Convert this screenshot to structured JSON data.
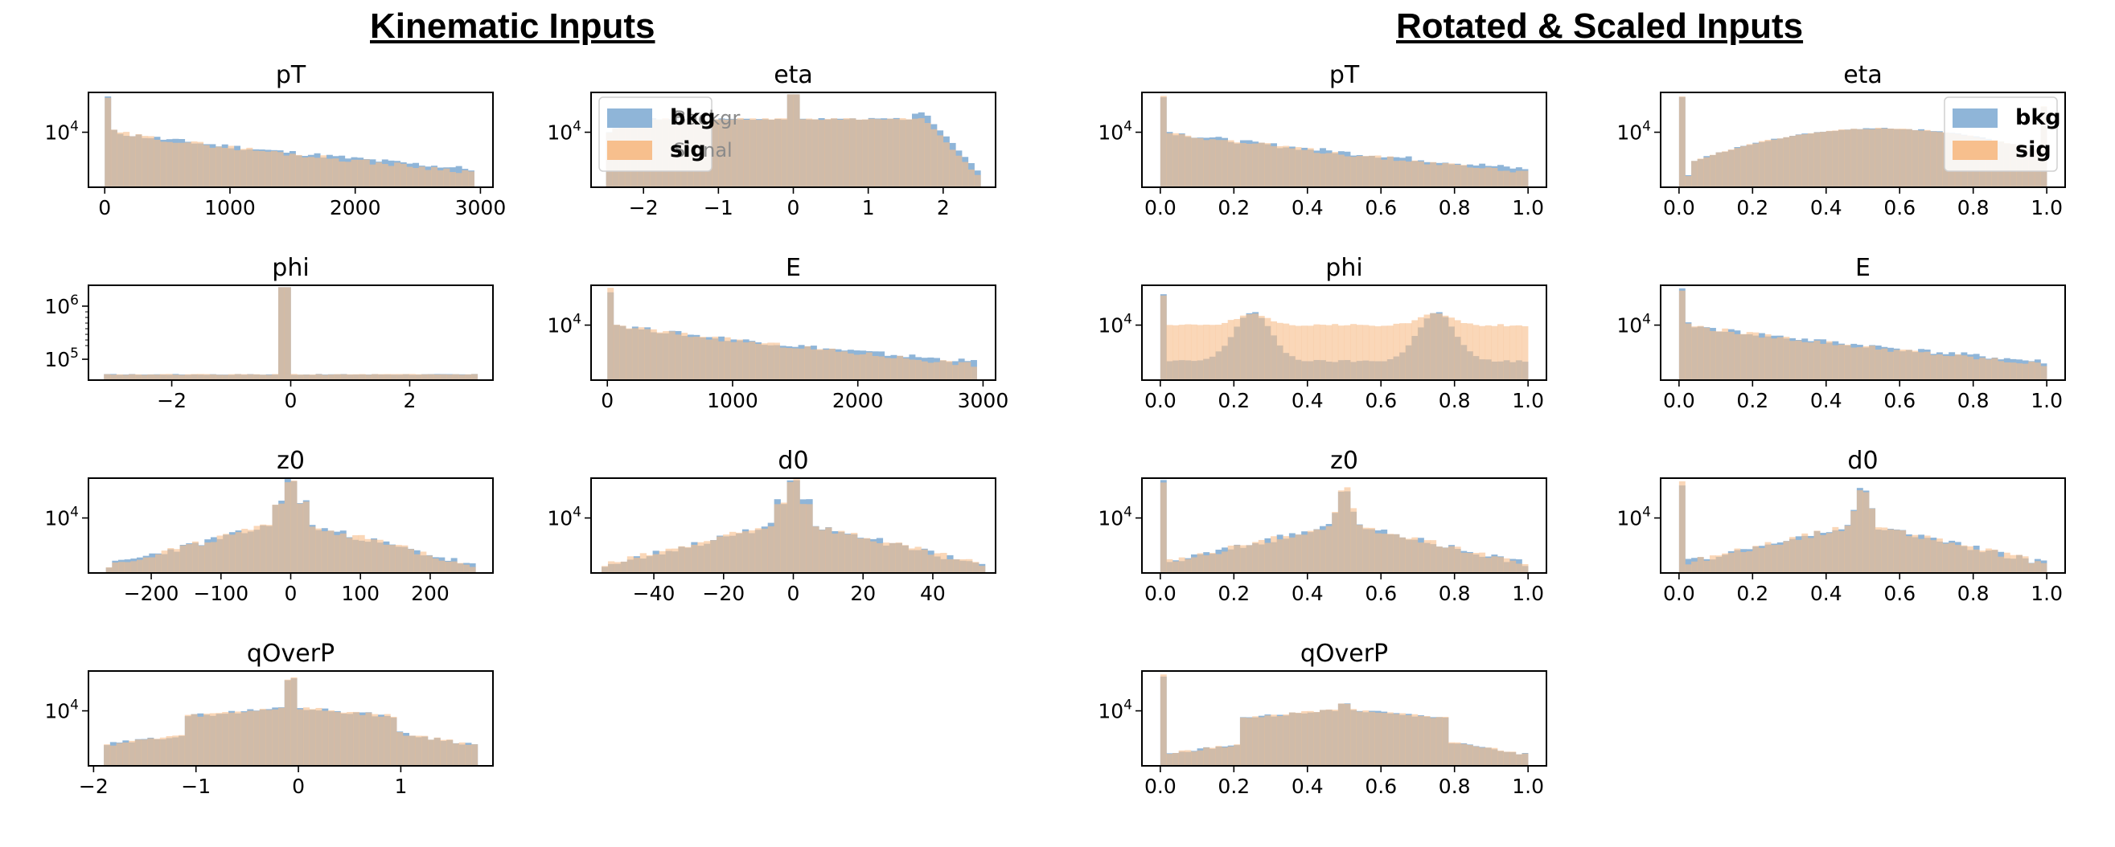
{
  "section_titles": {
    "left": "Kinematic Inputs",
    "right": "Rotated & Scaled Inputs"
  },
  "colors": {
    "bkg": "#8fb5d8",
    "sig": "#f7bf8d",
    "overlap": "#bb9675"
  },
  "legend": {
    "bkg": "bkg",
    "sig": "sig",
    "underlying_left": [
      "Backgr",
      "Signal"
    ]
  },
  "chart_data": [
    {
      "type": "histogram",
      "title": "pT",
      "group": "kinematic",
      "xlim": [
        -130,
        3100
      ],
      "yscale": "log",
      "yticks": [
        {
          "v": 10000,
          "label": "10^4"
        }
      ],
      "xticks": [
        0,
        1000,
        2000,
        3000
      ],
      "xticklabels": [
        "0",
        "1000",
        "2000",
        "3000"
      ],
      "shape": "decay",
      "params": {
        "start": 0,
        "end": 2950,
        "peakAt": 0
      },
      "legend": false
    },
    {
      "type": "histogram",
      "title": "eta",
      "group": "kinematic",
      "xlim": [
        -2.7,
        2.7
      ],
      "yscale": "log",
      "yticks": [
        {
          "v": 10000,
          "label": "10^4"
        }
      ],
      "xticks": [
        -2,
        -1,
        0,
        1,
        2
      ],
      "xticklabels": [
        "−2",
        "−1",
        "0",
        "1",
        "2"
      ],
      "shape": "plateau_spike",
      "params": {
        "start": -2.5,
        "end": 2.5,
        "spikeAt": 0
      },
      "legend": true,
      "legend_position": "top-left"
    },
    {
      "type": "histogram",
      "title": "phi",
      "group": "kinematic",
      "xlim": [
        -3.4,
        3.4
      ],
      "yscale": "log",
      "yticks": [
        {
          "v": 100000,
          "label": "10^5"
        },
        {
          "v": 1000000,
          "label": "10^6"
        }
      ],
      "xticks": [
        -2,
        0,
        2
      ],
      "xticklabels": [
        "−2",
        "0",
        "2"
      ],
      "shape": "flat_spike",
      "params": {
        "start": -3.14,
        "end": 3.14,
        "spikeAt": -0.1
      },
      "legend": false
    },
    {
      "type": "histogram",
      "title": "E",
      "group": "kinematic",
      "xlim": [
        -130,
        3100
      ],
      "yscale": "log",
      "yticks": [
        {
          "v": 10000,
          "label": "10^4"
        }
      ],
      "xticks": [
        0,
        1000,
        2000,
        3000
      ],
      "xticklabels": [
        "0",
        "1000",
        "2000",
        "3000"
      ],
      "shape": "decay",
      "params": {
        "start": 0,
        "end": 2950,
        "peakAt": 0
      },
      "legend": false
    },
    {
      "type": "histogram",
      "title": "z0",
      "group": "kinematic",
      "xlim": [
        -290,
        290
      ],
      "yscale": "log",
      "yticks": [
        {
          "v": 10000,
          "label": "10^4"
        }
      ],
      "xticks": [
        -200,
        -100,
        0,
        100,
        200
      ],
      "xticklabels": [
        "−200",
        "−100",
        "0",
        "100",
        "200"
      ],
      "shape": "peak",
      "params": {
        "start": -265,
        "end": 265,
        "peakAt": 0
      },
      "legend": false
    },
    {
      "type": "histogram",
      "title": "d0",
      "group": "kinematic",
      "xlim": [
        -58,
        58
      ],
      "yscale": "log",
      "yticks": [
        {
          "v": 10000,
          "label": "10^4"
        }
      ],
      "xticks": [
        -40,
        -20,
        0,
        20,
        40
      ],
      "xticklabels": [
        "−40",
        "−20",
        "0",
        "20",
        "40"
      ],
      "shape": "peak",
      "params": {
        "start": -55,
        "end": 55,
        "peakAt": 0
      },
      "legend": false
    },
    {
      "type": "histogram",
      "title": "qOverP",
      "group": "kinematic",
      "xlim": [
        -2.05,
        1.9
      ],
      "yscale": "log",
      "yticks": [
        {
          "v": 10000,
          "label": "10^4"
        }
      ],
      "xticks": [
        -2,
        -1,
        0,
        1
      ],
      "xticklabels": [
        "−2",
        "−1",
        "0",
        "1"
      ],
      "shape": "plateau_tails",
      "params": {
        "start": -1.9,
        "end": 1.75,
        "peakAt": 0
      },
      "legend": false
    },
    {
      "type": "histogram",
      "title": "pT",
      "group": "scaled",
      "xlim": [
        -0.05,
        1.05
      ],
      "yscale": "log",
      "yticks": [
        {
          "v": 10000,
          "label": "10^4"
        }
      ],
      "xticks": [
        0.0,
        0.2,
        0.4,
        0.6,
        0.8,
        1.0
      ],
      "xticklabels": [
        "0.0",
        "0.2",
        "0.4",
        "0.6",
        "0.8",
        "1.0"
      ],
      "shape": "decay",
      "params": {
        "start": 0,
        "end": 1,
        "peakAt": 0
      },
      "legend": false
    },
    {
      "type": "histogram",
      "title": "eta",
      "group": "scaled",
      "xlim": [
        -0.05,
        1.05
      ],
      "yscale": "log",
      "yticks": [
        {
          "v": 10000,
          "label": "10^4"
        }
      ],
      "xticks": [
        0.0,
        0.2,
        0.4,
        0.6,
        0.8,
        1.0
      ],
      "xticklabels": [
        "0.0",
        "0.2",
        "0.4",
        "0.6",
        "0.8",
        "1.0"
      ],
      "shape": "arch_spike0",
      "params": {
        "start": 0,
        "end": 1,
        "peakAt": 0
      },
      "legend": true,
      "legend_position": "top-right"
    },
    {
      "type": "histogram",
      "title": "phi",
      "group": "scaled",
      "xlim": [
        -0.05,
        1.05
      ],
      "yscale": "log",
      "yticks": [
        {
          "v": 10000,
          "label": "10^4"
        }
      ],
      "xticks": [
        0.0,
        0.2,
        0.4,
        0.6,
        0.8,
        1.0
      ],
      "xticklabels": [
        "0.0",
        "0.2",
        "0.4",
        "0.6",
        "0.8",
        "1.0"
      ],
      "shape": "double_hump",
      "params": {
        "start": 0,
        "end": 1,
        "peakAt": 0
      },
      "legend": false
    },
    {
      "type": "histogram",
      "title": "E",
      "group": "scaled",
      "xlim": [
        -0.05,
        1.05
      ],
      "yscale": "log",
      "yticks": [
        {
          "v": 10000,
          "label": "10^4"
        }
      ],
      "xticks": [
        0.0,
        0.2,
        0.4,
        0.6,
        0.8,
        1.0
      ],
      "xticklabels": [
        "0.0",
        "0.2",
        "0.4",
        "0.6",
        "0.8",
        "1.0"
      ],
      "shape": "decay",
      "params": {
        "start": 0,
        "end": 1,
        "peakAt": 0
      },
      "legend": false
    },
    {
      "type": "histogram",
      "title": "z0",
      "group": "scaled",
      "xlim": [
        -0.05,
        1.05
      ],
      "yscale": "log",
      "yticks": [
        {
          "v": 10000,
          "label": "10^4"
        }
      ],
      "xticks": [
        0.0,
        0.2,
        0.4,
        0.6,
        0.8,
        1.0
      ],
      "xticklabels": [
        "0.0",
        "0.2",
        "0.4",
        "0.6",
        "0.8",
        "1.0"
      ],
      "shape": "peak_spike0",
      "params": {
        "start": 0,
        "end": 1,
        "peakAt": 0.5
      },
      "legend": false
    },
    {
      "type": "histogram",
      "title": "d0",
      "group": "scaled",
      "xlim": [
        -0.05,
        1.05
      ],
      "yscale": "log",
      "yticks": [
        {
          "v": 10000,
          "label": "10^4"
        }
      ],
      "xticks": [
        0.0,
        0.2,
        0.4,
        0.6,
        0.8,
        1.0
      ],
      "xticklabels": [
        "0.0",
        "0.2",
        "0.4",
        "0.6",
        "0.8",
        "1.0"
      ],
      "shape": "peak_spike0",
      "params": {
        "start": 0,
        "end": 1,
        "peakAt": 0.5
      },
      "legend": false
    },
    {
      "type": "histogram",
      "title": "qOverP",
      "group": "scaled",
      "xlim": [
        -0.05,
        1.05
      ],
      "yscale": "log",
      "yticks": [
        {
          "v": 10000,
          "label": "10^4"
        }
      ],
      "xticks": [
        0.0,
        0.2,
        0.4,
        0.6,
        0.8,
        1.0
      ],
      "xticklabels": [
        "0.0",
        "0.2",
        "0.4",
        "0.6",
        "0.8",
        "1.0"
      ],
      "shape": "plateau_tails_spike0",
      "params": {
        "start": 0,
        "end": 1,
        "peakAt": 0.5
      },
      "legend": false
    }
  ]
}
